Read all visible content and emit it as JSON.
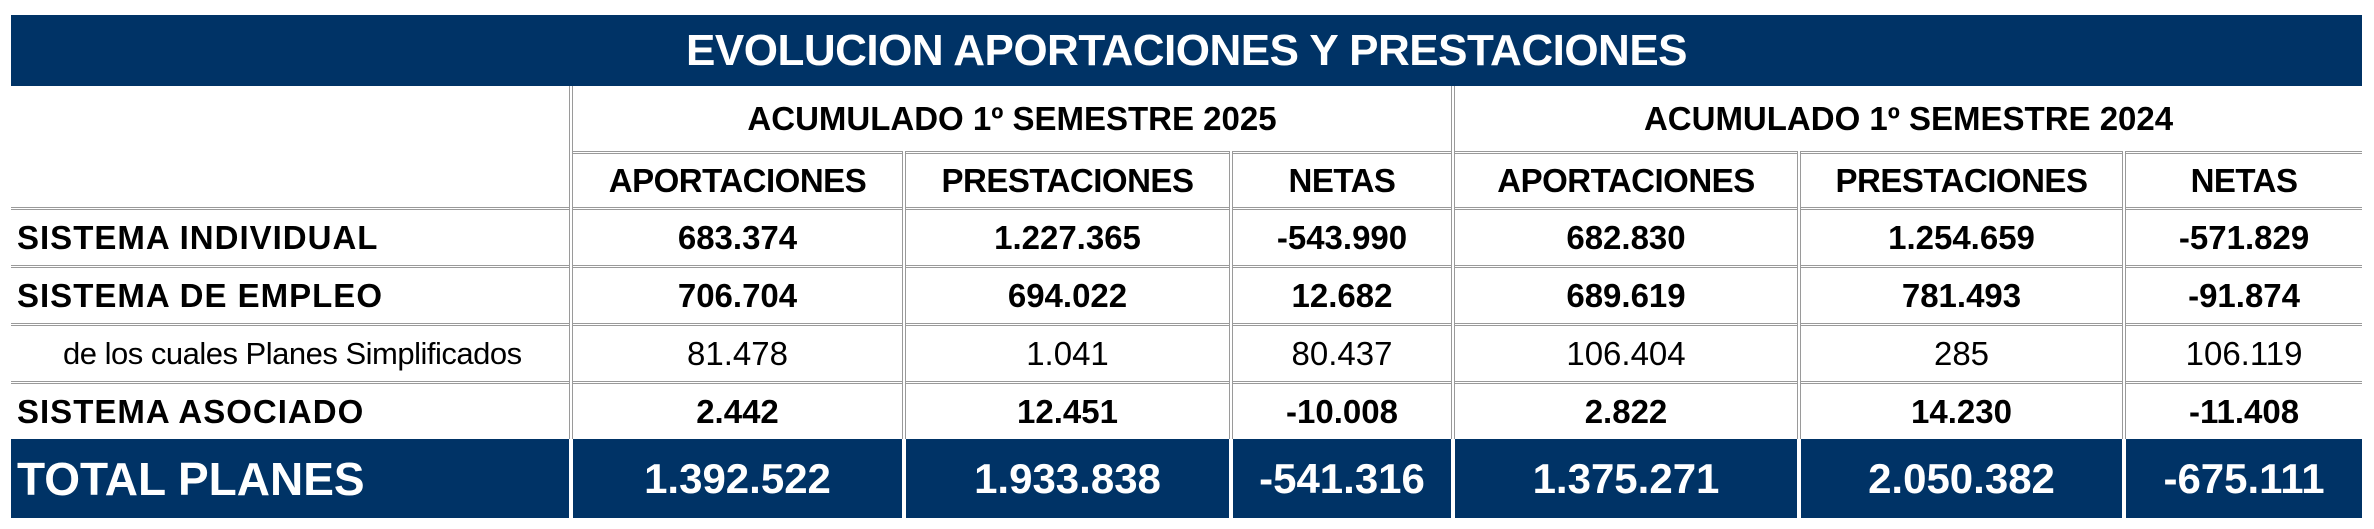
{
  "title": "EVOLUCION APORTACIONES Y PRESTACIONES",
  "groups": [
    "ACUMULADO 1º SEMESTRE 2025",
    "ACUMULADO 1º SEMESTRE 2024"
  ],
  "columns": [
    "APORTACIONES",
    "PRESTACIONES",
    "NETAS",
    "APORTACIONES",
    "PRESTACIONES",
    "NETAS"
  ],
  "rows": [
    {
      "label": "SISTEMA INDIVIDUAL",
      "values": [
        "683.374",
        "1.227.365",
        "-543.990",
        "682.830",
        "1.254.659",
        "-571.829"
      ]
    },
    {
      "label": "SISTEMA DE EMPLEO",
      "values": [
        "706.704",
        "694.022",
        "12.682",
        "689.619",
        "781.493",
        "-91.874"
      ]
    },
    {
      "label": "de los cuales Planes Simplificados",
      "values": [
        "81.478",
        "1.041",
        "80.437",
        "106.404",
        "285",
        "106.119"
      ]
    },
    {
      "label": "SISTEMA ASOCIADO",
      "values": [
        "2.442",
        "12.451",
        "-10.008",
        "2.822",
        "14.230",
        "-11.408"
      ]
    }
  ],
  "total": {
    "label": "TOTAL PLANES",
    "values": [
      "1.392.522",
      "1.933.838",
      "-541.316",
      "1.375.271",
      "2.050.382",
      "-675.111"
    ]
  }
}
